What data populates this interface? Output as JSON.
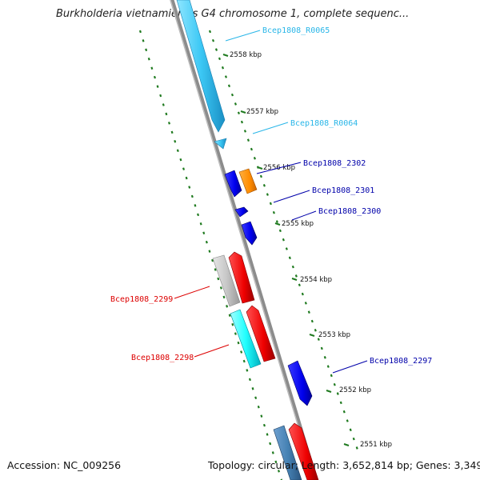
{
  "title": "Burkholderia vietnamiensis G4 chromosome 1, complete sequenc...",
  "footer": {
    "accession": "Accession: NC_009256",
    "summary": "Topology: circular; Length: 3,652,814 bp; Genes: 3,349"
  },
  "colors": {
    "backbone": "#8c8c8c",
    "ticks": "#1f7a1f",
    "trna_label": "#29b6e8",
    "forward_label": "#0000aa",
    "reverse_label": "#dd0000"
  },
  "scale": [
    {
      "label": "2558 kbp"
    },
    {
      "label": "2557 kbp"
    },
    {
      "label": "2556 kbp"
    },
    {
      "label": "2555 kbp"
    },
    {
      "label": "2554 kbp"
    },
    {
      "label": "2553 kbp"
    },
    {
      "label": "2552 kbp"
    },
    {
      "label": "2551 kbp"
    }
  ],
  "gene_labels": [
    {
      "text": "Bcep1808_R0065"
    },
    {
      "text": "Bcep1808_R0064"
    },
    {
      "text": "Bcep1808_2302"
    },
    {
      "text": "Bcep1808_2301"
    },
    {
      "text": "Bcep1808_2300"
    },
    {
      "text": "Bcep1808_2299"
    },
    {
      "text": "Bcep1808_2298"
    },
    {
      "text": "Bcep1808_2297"
    }
  ]
}
